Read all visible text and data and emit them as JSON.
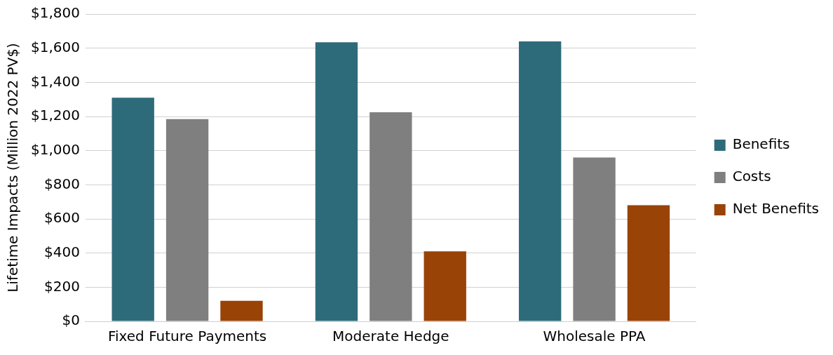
{
  "chart_data": {
    "type": "bar",
    "ylabel": "Lifetime Impacts (Million 2022 PV$)",
    "categories": [
      "Fixed Future Payments",
      "Moderate Hedge",
      "Wholesale PPA"
    ],
    "series": [
      {
        "name": "Benefits",
        "color": "#2e6b7a",
        "values": [
          1310,
          1635,
          1640
        ]
      },
      {
        "name": "Costs",
        "color": "#7f7f7f",
        "values": [
          1185,
          1225,
          960
        ]
      },
      {
        "name": "Net Benefits",
        "color": "#994307",
        "values": [
          120,
          410,
          680
        ]
      }
    ],
    "ylim": [
      0,
      1800
    ],
    "yticks": [
      {
        "value": 0,
        "label": "$0"
      },
      {
        "value": 200,
        "label": "$200"
      },
      {
        "value": 400,
        "label": "$400"
      },
      {
        "value": 600,
        "label": "$600"
      },
      {
        "value": 800,
        "label": "$800"
      },
      {
        "value": 1000,
        "label": "$1,000"
      },
      {
        "value": 1200,
        "label": "$1,200"
      },
      {
        "value": 1400,
        "label": "$1,400"
      },
      {
        "value": 1600,
        "label": "$1,600"
      },
      {
        "value": 1800,
        "label": "$1,800"
      }
    ],
    "grid": "y",
    "legend": "right"
  }
}
